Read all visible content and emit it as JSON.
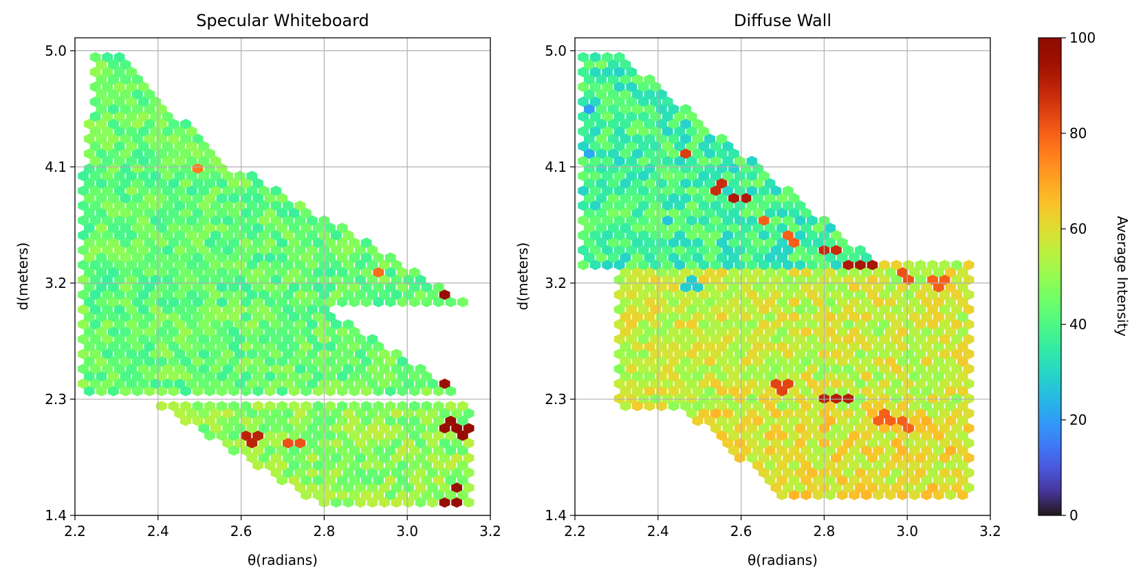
{
  "chart_data": {
    "type": "heatmap",
    "subtype": "hexbin",
    "colormap": "turbo",
    "colorbar": {
      "label": "Average Intensity",
      "ticks": [
        0,
        20,
        40,
        60,
        80,
        100
      ],
      "tick_labels": [
        "0",
        "20",
        "40",
        "60",
        "80",
        "100"
      ],
      "range": [
        0,
        100
      ]
    },
    "panels": [
      {
        "title": "Specular Whiteboard",
        "xlabel": "θ(radians)",
        "ylabel": "d(meters)",
        "xlim": [
          2.2,
          3.2
        ],
        "ylim": [
          1.4,
          5.1
        ],
        "xticks": [
          2.2,
          2.4,
          2.6,
          2.8,
          3.0,
          3.2
        ],
        "xtick_labels": [
          "2.2",
          "2.4",
          "2.6",
          "2.8",
          "3.0",
          "3.2"
        ],
        "yticks": [
          1.4,
          2.3,
          3.2,
          4.1,
          5.0
        ],
        "ytick_labels": [
          "1.4",
          "2.3",
          "3.2",
          "4.1",
          "5.0"
        ],
        "grid": true,
        "regions": [
          {
            "name": "upper-wedge",
            "d_start": 5.0,
            "d_end": 4.05,
            "theta_top": [
              2.25,
              2.3
            ],
            "theta_bottom": [
              2.22,
              2.58
            ],
            "d_range": [
              4.05,
              5.0
            ],
            "value": 44,
            "var": 7
          },
          {
            "name": "upper-band",
            "d_start": 4.05,
            "d_end": 3.05,
            "theta_top": [
              2.22,
              2.62
            ],
            "theta_bottom": [
              2.22,
              3.15
            ],
            "d_range": [
              3.05,
              4.05
            ],
            "value": 43,
            "var": 7
          },
          {
            "name": "middle-block",
            "d_start": 3.15,
            "d_end": 2.32,
            "theta_top": [
              2.22,
              2.72
            ],
            "theta_bottom": [
              2.22,
              3.15
            ],
            "d_range": [
              2.32,
              3.15
            ],
            "value": 44,
            "var": 7
          },
          {
            "name": "lower-band",
            "d_start": 2.3,
            "d_end": 1.5,
            "theta_top": [
              2.38,
              3.15
            ],
            "theta_bottom": [
              2.78,
              3.15
            ],
            "d_range": [
              1.5,
              2.3
            ],
            "value": 49,
            "var": 7
          }
        ],
        "hotspots": [
          {
            "theta": 3.1,
            "d": 3.15,
            "value": 96
          },
          {
            "theta": 3.13,
            "d": 3.1,
            "value": 97
          },
          {
            "theta": 3.13,
            "d": 3.2,
            "value": 96
          },
          {
            "theta": 3.13,
            "d": 2.4,
            "value": 97
          },
          {
            "theta": 3.13,
            "d": 2.3,
            "value": 96
          },
          {
            "theta": 3.13,
            "d": 2.5,
            "value": 97
          },
          {
            "theta": 3.1,
            "d": 2.45,
            "value": 95
          },
          {
            "theta": 3.1,
            "d": 2.1,
            "value": 96
          },
          {
            "theta": 3.13,
            "d": 2.05,
            "value": 97
          },
          {
            "theta": 3.12,
            "d": 1.6,
            "value": 96
          },
          {
            "theta": 3.1,
            "d": 1.5,
            "value": 96
          },
          {
            "theta": 2.63,
            "d": 2.0,
            "value": 90
          },
          {
            "theta": 2.93,
            "d": 3.3,
            "value": 78
          },
          {
            "theta": 2.72,
            "d": 1.95,
            "value": 82
          },
          {
            "theta": 2.5,
            "d": 4.1,
            "value": 76
          }
        ]
      },
      {
        "title": "Diffuse Wall",
        "xlabel": "θ(radians)",
        "ylabel": "d(meters)",
        "xlim": [
          2.2,
          3.2
        ],
        "ylim": [
          1.4,
          5.1
        ],
        "xticks": [
          2.2,
          2.4,
          2.6,
          2.8,
          3.0,
          3.2
        ],
        "xtick_labels": [
          "2.2",
          "2.4",
          "2.6",
          "2.8",
          "3.0",
          "3.2"
        ],
        "yticks": [
          1.4,
          2.3,
          3.2,
          4.1,
          5.0
        ],
        "ytick_labels": [
          "1.4",
          "2.3",
          "3.2",
          "4.1",
          "5.0"
        ],
        "grid": true,
        "regions": [
          {
            "name": "upper-left",
            "d_start": 5.0,
            "d_end": 3.3,
            "theta_top": [
              2.22,
              2.3
            ],
            "theta_bottom": [
              2.22,
              2.95
            ],
            "d_range": [
              3.3,
              5.0
            ],
            "value": 38,
            "var": 9
          },
          {
            "name": "main-body",
            "d_start": 3.35,
            "d_end": 2.2,
            "theta_top": [
              2.3,
              3.15
            ],
            "theta_bottom": [
              2.3,
              3.15
            ],
            "d_range": [
              2.2,
              3.35
            ],
            "value": 56,
            "var": 8
          },
          {
            "name": "lower-body",
            "d_start": 2.25,
            "d_end": 1.55,
            "theta_top": [
              2.45,
              3.15
            ],
            "theta_bottom": [
              2.7,
              3.15
            ],
            "d_range": [
              1.55,
              2.25
            ],
            "value": 60,
            "var": 8
          }
        ],
        "hotspots": [
          {
            "theta": 2.47,
            "d": 4.2,
            "value": 85
          },
          {
            "theta": 2.55,
            "d": 3.95,
            "value": 88
          },
          {
            "theta": 2.59,
            "d": 3.85,
            "value": 92
          },
          {
            "theta": 2.65,
            "d": 3.7,
            "value": 80
          },
          {
            "theta": 2.72,
            "d": 3.55,
            "value": 80
          },
          {
            "theta": 2.81,
            "d": 3.45,
            "value": 88
          },
          {
            "theta": 2.87,
            "d": 3.35,
            "value": 92
          },
          {
            "theta": 2.9,
            "d": 3.33,
            "value": 93
          },
          {
            "theta": 3.0,
            "d": 3.25,
            "value": 82
          },
          {
            "theta": 3.08,
            "d": 3.2,
            "value": 80
          },
          {
            "theta": 2.81,
            "d": 2.3,
            "value": 90
          },
          {
            "theta": 2.84,
            "d": 2.3,
            "value": 91
          },
          {
            "theta": 2.7,
            "d": 2.4,
            "value": 84
          },
          {
            "theta": 2.95,
            "d": 2.15,
            "value": 80
          },
          {
            "theta": 3.0,
            "d": 2.1,
            "value": 80
          },
          {
            "theta": 2.22,
            "d": 4.2,
            "value": 22
          },
          {
            "theta": 2.24,
            "d": 4.55,
            "value": 20
          },
          {
            "theta": 2.48,
            "d": 3.2,
            "value": 28
          },
          {
            "theta": 2.42,
            "d": 3.7,
            "value": 27
          }
        ]
      }
    ]
  }
}
